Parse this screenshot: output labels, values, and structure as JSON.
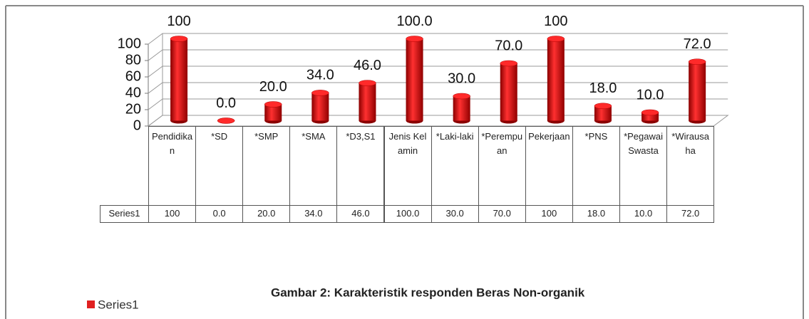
{
  "chart_data": {
    "type": "bar",
    "caption": "Gambar 2: Karakteristik responden Beras Non-organik",
    "categories": [
      "Pendidikan",
      "*SD",
      "*SMP",
      "*SMA",
      "*D3,S1",
      "Jenis Kelamin",
      "*Laki-laki",
      "*Perempuan",
      "Pekerjaan",
      "*PNS",
      "*Pegawai Swasta",
      "*Wirausaha"
    ],
    "series": [
      {
        "name": "Series1",
        "color": "#e02020",
        "values": [
          100,
          0,
          20,
          34,
          46,
          100,
          30,
          70,
          100,
          18,
          10,
          72
        ],
        "value_labels": [
          "100",
          "0.0",
          "20.0",
          "34.0",
          "46.0",
          "100.0",
          "30.0",
          "70.0",
          "100",
          "18.0",
          "10.0",
          "72.0"
        ]
      }
    ],
    "ylim": [
      0,
      100
    ],
    "yticks": [
      0,
      20,
      40,
      60,
      80,
      100
    ],
    "grid": true,
    "legend": "bottom-left"
  }
}
